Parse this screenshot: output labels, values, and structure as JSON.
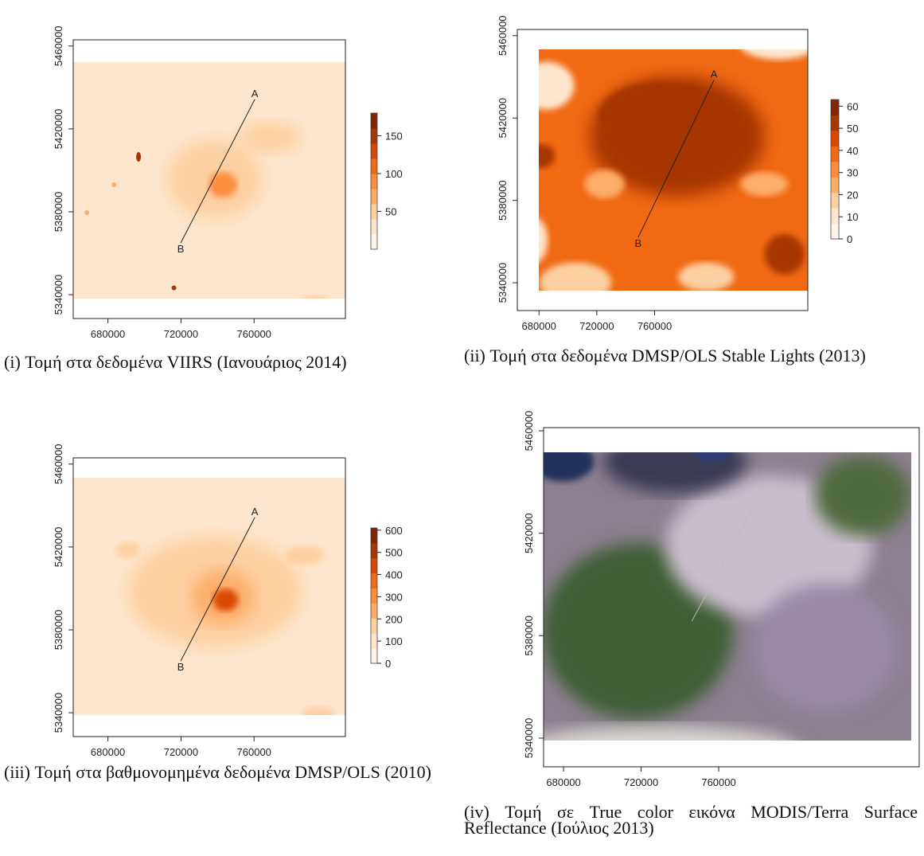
{
  "chart_data": [
    {
      "type": "raster",
      "xlim": [
        661000,
        810000
      ],
      "ylim": [
        5328500,
        5463000
      ],
      "xticks": [
        680000,
        720000,
        760000
      ],
      "yticks": [
        5340000,
        5380000,
        5420000,
        5460000
      ],
      "zlim": [
        0,
        180
      ],
      "zticks": [
        50,
        100,
        150
      ],
      "colors": [
        "#fff5eb",
        "#fee6ce",
        "#fdd0a2",
        "#fdae6b",
        "#fd8d3c",
        "#f16913",
        "#d94801",
        "#a63603",
        "#7f2704"
      ],
      "transect_labels": [
        "A",
        "B"
      ],
      "caption": "(i) Τομή στα δεδομένα VIIRS (Ιανουάριος 2014)"
    },
    {
      "type": "raster",
      "xlim": [
        665000,
        866000
      ],
      "ylim": [
        5326500,
        5463000
      ],
      "xticks": [
        680000,
        720000,
        760000
      ],
      "yticks": [
        5340000,
        5380000,
        5420000,
        5460000
      ],
      "zlim": [
        0,
        63
      ],
      "zticks": [
        0,
        10,
        20,
        30,
        40,
        50,
        60
      ],
      "colors": [
        "#fff5eb",
        "#fee6ce",
        "#fdd0a2",
        "#fdae6b",
        "#fd8d3c",
        "#f16913",
        "#d94801",
        "#a63603",
        "#7f2704"
      ],
      "transect_labels": [
        "A",
        "B"
      ],
      "caption": "(ii) Τομή στα δεδομένα DMSP/OLS Stable Lights (2013)"
    },
    {
      "type": "raster",
      "xlim": [
        661000,
        810000
      ],
      "ylim": [
        5328500,
        5463000
      ],
      "xticks": [
        680000,
        720000,
        760000
      ],
      "yticks": [
        5340000,
        5380000,
        5420000,
        5460000
      ],
      "zlim": [
        0,
        610
      ],
      "zticks": [
        0,
        100,
        200,
        300,
        400,
        500,
        600
      ],
      "colors": [
        "#fff5eb",
        "#fee6ce",
        "#fdd0a2",
        "#fdae6b",
        "#fd8d3c",
        "#f16913",
        "#d94801",
        "#a63603",
        "#7f2704"
      ],
      "transect_labels": [
        "A",
        "B"
      ],
      "caption": "(iii) Τομή στα βαθμονομημένα δεδομένα DMSP/OLS (2010)"
    },
    {
      "type": "rgb",
      "xlim": [
        669700,
        863400
      ],
      "ylim": [
        5328800,
        5461250
      ],
      "xticks": [
        680000,
        720000,
        760000
      ],
      "yticks": [
        5340000,
        5380000,
        5420000,
        5460000
      ],
      "caption": "(iv) Τομή σε True color εικόνα MODIS/Terra Surface Reflectance (Ιούλιος 2013)"
    }
  ]
}
